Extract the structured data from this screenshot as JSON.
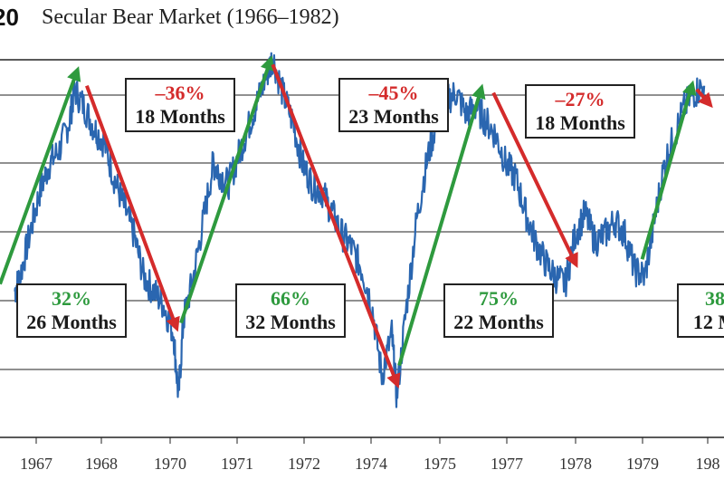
{
  "header": {
    "figure_number": "20",
    "title": "Secular Bear Market (1966–1982)"
  },
  "chart_data": {
    "type": "line",
    "title": "Secular Bear Market (1966–1982)",
    "x_tick_labels": [
      "1967",
      "1968",
      "1970",
      "1971",
      "1972",
      "1974",
      "1975",
      "1977",
      "1978",
      "1979",
      "198"
    ],
    "grid": "horizontal",
    "legend": "none",
    "series": [
      {
        "values": [
          [
            1966.9,
            620
          ],
          [
            1967.0,
            640
          ],
          [
            1967.2,
            700
          ],
          [
            1967.4,
            760
          ],
          [
            1967.6,
            800
          ],
          [
            1967.8,
            820
          ],
          [
            1968.0,
            860
          ],
          [
            1968.1,
            905
          ],
          [
            1968.3,
            880
          ],
          [
            1968.5,
            850
          ],
          [
            1968.7,
            830
          ],
          [
            1968.9,
            780
          ],
          [
            1969.1,
            740
          ],
          [
            1969.3,
            700
          ],
          [
            1969.5,
            640
          ],
          [
            1969.7,
            620
          ],
          [
            1969.9,
            600
          ],
          [
            1970.1,
            560
          ],
          [
            1970.2,
            470
          ],
          [
            1970.3,
            580
          ],
          [
            1970.5,
            640
          ],
          [
            1970.7,
            720
          ],
          [
            1970.9,
            800
          ],
          [
            1971.0,
            790
          ],
          [
            1971.2,
            770
          ],
          [
            1971.4,
            810
          ],
          [
            1971.6,
            850
          ],
          [
            1971.8,
            890
          ],
          [
            1972.0,
            930
          ],
          [
            1972.1,
            950
          ],
          [
            1972.3,
            900
          ],
          [
            1972.5,
            860
          ],
          [
            1972.7,
            800
          ],
          [
            1972.9,
            770
          ],
          [
            1973.1,
            760
          ],
          [
            1973.3,
            730
          ],
          [
            1973.5,
            700
          ],
          [
            1973.7,
            680
          ],
          [
            1973.9,
            650
          ],
          [
            1974.1,
            600
          ],
          [
            1974.3,
            500
          ],
          [
            1974.5,
            560
          ],
          [
            1974.6,
            470
          ],
          [
            1974.8,
            600
          ],
          [
            1975.0,
            720
          ],
          [
            1975.2,
            800
          ],
          [
            1975.4,
            860
          ],
          [
            1975.6,
            890
          ],
          [
            1975.8,
            900
          ],
          [
            1976.0,
            870
          ],
          [
            1976.2,
            880
          ],
          [
            1976.4,
            860
          ],
          [
            1976.6,
            840
          ],
          [
            1976.8,
            800
          ],
          [
            1977.0,
            780
          ],
          [
            1977.2,
            730
          ],
          [
            1977.4,
            690
          ],
          [
            1977.6,
            660
          ],
          [
            1977.8,
            640
          ],
          [
            1978.0,
            630
          ],
          [
            1978.2,
            700
          ],
          [
            1978.4,
            730
          ],
          [
            1978.6,
            690
          ],
          [
            1978.8,
            700
          ],
          [
            1979.0,
            720
          ],
          [
            1979.2,
            700
          ],
          [
            1979.4,
            650
          ],
          [
            1979.6,
            640
          ],
          [
            1979.8,
            720
          ],
          [
            1980.0,
            800
          ],
          [
            1980.2,
            840
          ],
          [
            1980.4,
            880
          ],
          [
            1980.6,
            900
          ],
          [
            1980.8,
            910
          ]
        ]
      }
    ],
    "annotations": [
      {
        "pct": "32%",
        "duration": "26 Months",
        "direction": "up",
        "start": [
          1966.6,
          630
        ],
        "end": [
          1968.15,
          930
        ]
      },
      {
        "pct": "–36%",
        "duration": "18 Months",
        "direction": "down",
        "start": [
          1968.35,
          910
        ],
        "end": [
          1970.15,
          570
        ]
      },
      {
        "pct": "66%",
        "duration": "32 Months",
        "direction": "up",
        "start": [
          1970.25,
          575
        ],
        "end": [
          1972.05,
          945
        ]
      },
      {
        "pct": "–45%",
        "duration": "23 Months",
        "direction": "down",
        "start": [
          1972.1,
          940
        ],
        "end": [
          1974.6,
          490
        ]
      },
      {
        "pct": "75%",
        "duration": "22 Months",
        "direction": "up",
        "start": [
          1974.65,
          515
        ],
        "end": [
          1976.3,
          905
        ]
      },
      {
        "pct": "–27%",
        "duration": "18 Months",
        "direction": "down",
        "start": [
          1976.55,
          900
        ],
        "end": [
          1978.2,
          660
        ]
      },
      {
        "pct": "38",
        "duration": "12 M",
        "direction": "up",
        "start": [
          1979.55,
          665
        ],
        "end": [
          1980.55,
          910
        ]
      },
      {
        "pct": "",
        "duration": "",
        "direction": "down",
        "start": [
          1980.65,
          905
        ],
        "end": [
          1980.9,
          885
        ]
      }
    ],
    "colors": {
      "line": "#2a66b0",
      "up": "#2e9a3e",
      "down": "#d42b2b",
      "grid": "#222222"
    }
  }
}
